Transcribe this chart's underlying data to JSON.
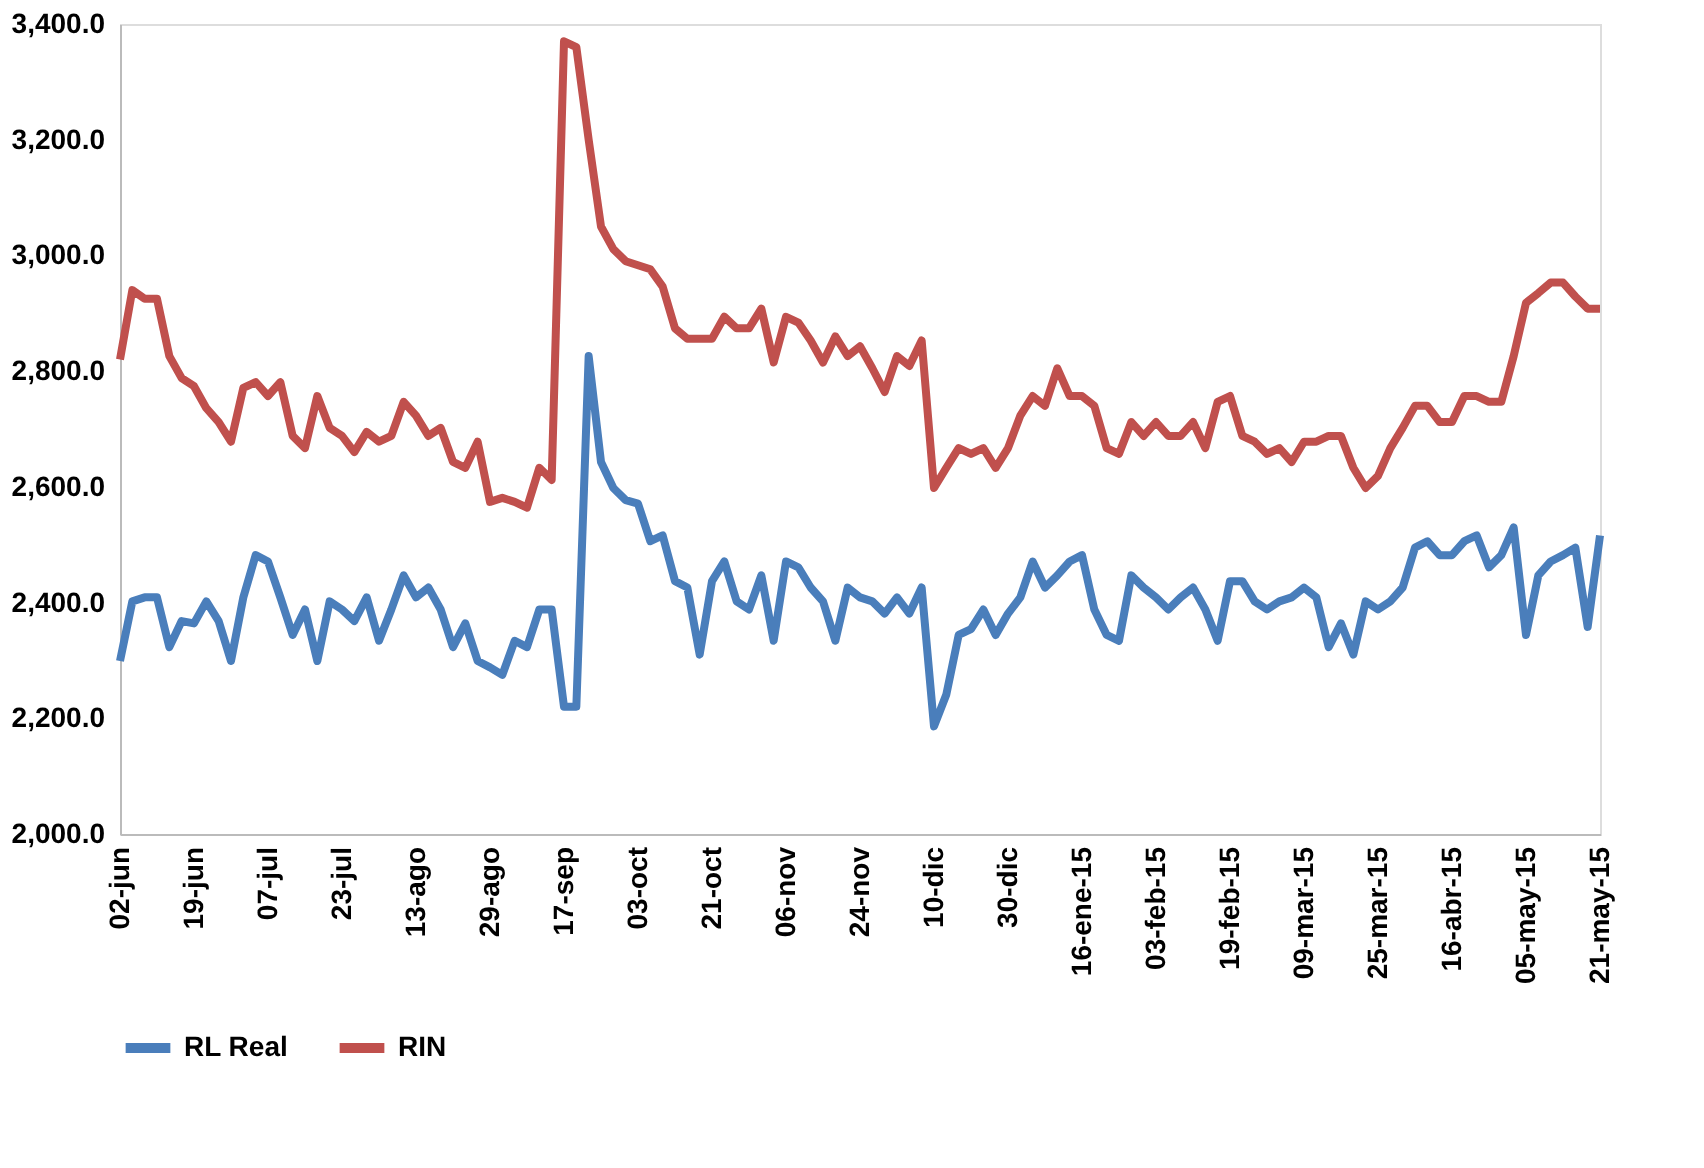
{
  "chart_data": {
    "type": "line",
    "categories": [
      "02-jun",
      null,
      null,
      null,
      null,
      null,
      "19-jun",
      null,
      null,
      null,
      null,
      null,
      "07-jul",
      null,
      null,
      null,
      null,
      null,
      "23-jul",
      null,
      null,
      null,
      null,
      null,
      "13-ago",
      null,
      null,
      null,
      null,
      null,
      "29-ago",
      null,
      null,
      null,
      null,
      null,
      "17-sep",
      null,
      null,
      null,
      null,
      null,
      "03-oct",
      null,
      null,
      null,
      null,
      null,
      "21-oct",
      null,
      null,
      null,
      null,
      null,
      "06-nov",
      null,
      null,
      null,
      null,
      null,
      "24-nov",
      null,
      null,
      null,
      null,
      null,
      "10-dic",
      null,
      null,
      null,
      null,
      null,
      "30-dic",
      null,
      null,
      null,
      null,
      null,
      "16-ene-15",
      null,
      null,
      null,
      null,
      null,
      "03-feb-15",
      null,
      null,
      null,
      null,
      null,
      "19-feb-15",
      null,
      null,
      null,
      null,
      null,
      "09-mar-15",
      null,
      null,
      null,
      null,
      null,
      "25-mar-15",
      null,
      null,
      null,
      null,
      null,
      "16-abr-15",
      null,
      null,
      null,
      null,
      null,
      "05-may-15",
      null,
      null,
      null,
      null,
      null,
      "21-may-15"
    ],
    "series": [
      {
        "name": "RL  Real",
        "color": "#4a7ebb",
        "values": [
          2299,
          2402,
          2409,
          2409,
          2323,
          2368,
          2364,
          2402,
          2368,
          2299,
          2409,
          2482,
          2471,
          2409,
          2344,
          2388,
          2299,
          2402,
          2388,
          2368,
          2409,
          2334,
          2388,
          2447,
          2409,
          2426,
          2388,
          2323,
          2364,
          2299,
          2288,
          2275,
          2334,
          2323,
          2388,
          2388,
          2220,
          2220,
          2826,
          2643,
          2598,
          2577,
          2571,
          2506,
          2516,
          2437,
          2426,
          2310,
          2437,
          2471,
          2402,
          2388,
          2447,
          2334,
          2471,
          2461,
          2426,
          2402,
          2334,
          2426,
          2409,
          2402,
          2381,
          2409,
          2381,
          2426,
          2186,
          2241,
          2344,
          2354,
          2388,
          2344,
          2381,
          2409,
          2471,
          2426,
          2447,
          2471,
          2482,
          2388,
          2344,
          2334,
          2447,
          2426,
          2409,
          2388,
          2409,
          2426,
          2388,
          2334,
          2437,
          2437,
          2402,
          2388,
          2402,
          2409,
          2426,
          2409,
          2323,
          2364,
          2310,
          2402,
          2388,
          2402,
          2426,
          2495,
          2506,
          2482,
          2482,
          2506,
          2516,
          2461,
          2482,
          2530,
          2344,
          2447,
          2471,
          2482,
          2495,
          2358,
          2516
        ]
      },
      {
        "name": "RIN",
        "color": "#c0504d",
        "values": [
          2820,
          2940,
          2925,
          2925,
          2826,
          2788,
          2774,
          2736,
          2712,
          2678,
          2771,
          2781,
          2757,
          2781,
          2688,
          2667,
          2757,
          2702,
          2688,
          2660,
          2695,
          2678,
          2688,
          2747,
          2723,
          2688,
          2702,
          2643,
          2633,
          2678,
          2574,
          2581,
          2574,
          2564,
          2633,
          2612,
          3370,
          3360,
          3200,
          3050,
          3011,
          2990,
          2983,
          2976,
          2946,
          2874,
          2856,
          2856,
          2856,
          2894,
          2874,
          2874,
          2908,
          2815,
          2894,
          2884,
          2853,
          2815,
          2860,
          2826,
          2843,
          2805,
          2764,
          2826,
          2809,
          2853,
          2598,
          2633,
          2667,
          2657,
          2667,
          2633,
          2667,
          2723,
          2757,
          2740,
          2805,
          2757,
          2757,
          2740,
          2667,
          2657,
          2712,
          2688,
          2712,
          2688,
          2688,
          2712,
          2667,
          2747,
          2757,
          2688,
          2678,
          2657,
          2667,
          2643,
          2678,
          2678,
          2688,
          2688,
          2633,
          2598,
          2619,
          2667,
          2702,
          2740,
          2740,
          2712,
          2712,
          2757,
          2757,
          2747,
          2747,
          2826,
          2918,
          2935,
          2953,
          2953,
          2929,
          2908,
          2908
        ]
      }
    ],
    "ylim": [
      2000,
      3400
    ],
    "yticks": [
      {
        "value": 2000,
        "label": "2,000.0"
      },
      {
        "value": 2200,
        "label": "2,200.0"
      },
      {
        "value": 2400,
        "label": "2,400.0"
      },
      {
        "value": 2600,
        "label": "2,600.0"
      },
      {
        "value": 2800,
        "label": "2,800.0"
      },
      {
        "value": 3000,
        "label": "3,000.0"
      },
      {
        "value": 3200,
        "label": "3,200.0"
      },
      {
        "value": 3400,
        "label": "3,400.0"
      }
    ],
    "grid": false,
    "legend": "bottom",
    "line_style": "solid"
  }
}
